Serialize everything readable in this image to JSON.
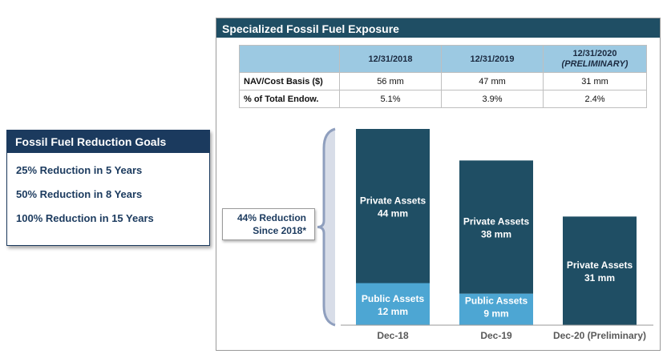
{
  "goals": {
    "title": "Fossil Fuel Reduction Goals",
    "items": [
      "25% Reduction in 5 Years",
      "50% Reduction in 8 Years",
      "100% Reduction in 15 Years"
    ]
  },
  "panel": {
    "title": "Specialized Fossil Fuel Exposure"
  },
  "table": {
    "columns": [
      "12/31/2018",
      "12/31/2019",
      "12/31/2020"
    ],
    "column_note": "(PRELIMINARY)",
    "rows": [
      {
        "label": "NAV/Cost Basis ($)",
        "values": [
          "56 mm",
          "47 mm",
          "31 mm"
        ]
      },
      {
        "label": "% of Total Endow.",
        "values": [
          "5.1%",
          "3.9%",
          "2.4%"
        ]
      }
    ]
  },
  "callout": {
    "line1": "44% Reduction",
    "line2": "Since 2018*"
  },
  "chart_data": {
    "type": "bar",
    "stacked": true,
    "categories": [
      "Dec-18",
      "Dec-19",
      "Dec-20 (Preliminary)"
    ],
    "series": [
      {
        "name": "Public Assets",
        "values": [
          12,
          9,
          0
        ],
        "labels": [
          "Public Assets|12 mm",
          "Public Assets|9 mm",
          ""
        ],
        "color": "#4da6d3"
      },
      {
        "name": "Private Assets",
        "values": [
          44,
          38,
          31
        ],
        "labels": [
          "Private Assets|44 mm",
          "Private Assets|38 mm",
          "Private Assets|31 mm"
        ],
        "color": "#1f4e64"
      }
    ],
    "ylim": [
      0,
      56
    ],
    "grid": false,
    "colors": {
      "bracket": "#8f9fbe",
      "axis": "#9a9a9a",
      "category_label": "#595959"
    }
  }
}
